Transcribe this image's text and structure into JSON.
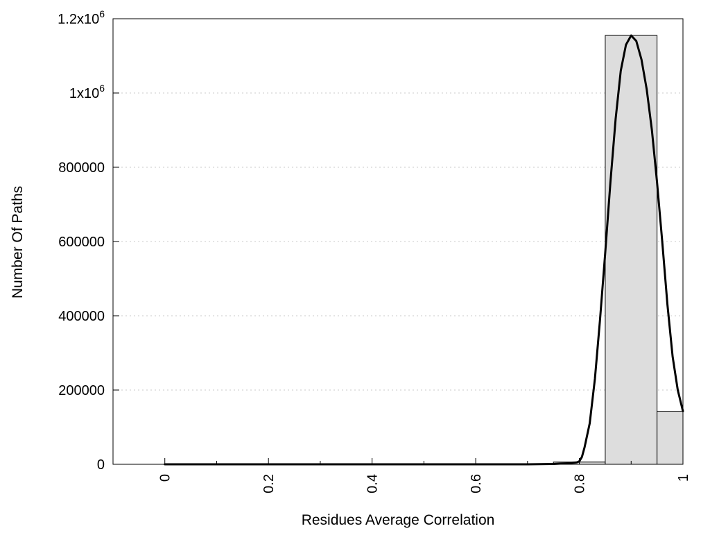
{
  "chart_data": {
    "type": "bar",
    "title": "",
    "xlabel": "Residues Average Correlation",
    "ylabel": "Number Of Paths",
    "xlim": [
      -0.1,
      1.0
    ],
    "ylim": [
      0,
      1200000
    ],
    "x_ticks": [
      {
        "value": 0.0,
        "label": "0"
      },
      {
        "value": 0.2,
        "label": "0.2"
      },
      {
        "value": 0.4,
        "label": "0.4"
      },
      {
        "value": 0.6,
        "label": "0.6"
      },
      {
        "value": 0.8,
        "label": "0.8"
      },
      {
        "value": 1.0,
        "label": "1"
      }
    ],
    "x_minor_ticks": [
      0.1,
      0.3,
      0.5,
      0.7,
      0.9
    ],
    "y_ticks": [
      {
        "value": 0,
        "label": "0",
        "sup": ""
      },
      {
        "value": 200000,
        "label": "200000",
        "sup": ""
      },
      {
        "value": 400000,
        "label": "400000",
        "sup": ""
      },
      {
        "value": 600000,
        "label": "600000",
        "sup": ""
      },
      {
        "value": 800000,
        "label": "800000",
        "sup": ""
      },
      {
        "value": 1000000,
        "label": "1x10",
        "sup": "6"
      },
      {
        "value": 1200000,
        "label": "1.2x10",
        "sup": "6"
      }
    ],
    "grid": {
      "horizontal": true,
      "style": "dotted"
    },
    "bins": [
      {
        "x0": 0.65,
        "x1": 0.75,
        "value": 1000
      },
      {
        "x0": 0.75,
        "x1": 0.85,
        "value": 6000
      },
      {
        "x0": 0.85,
        "x1": 0.95,
        "value": 1155000
      },
      {
        "x0": 0.95,
        "x1": 1.0,
        "value": 143000
      }
    ],
    "bar_color": "#dddddd",
    "curve": {
      "type": "line",
      "color": "#000000",
      "points": [
        [
          0.0,
          0
        ],
        [
          0.1,
          0
        ],
        [
          0.2,
          0
        ],
        [
          0.3,
          0
        ],
        [
          0.4,
          0
        ],
        [
          0.5,
          0
        ],
        [
          0.6,
          0
        ],
        [
          0.7,
          0
        ],
        [
          0.75,
          1000
        ],
        [
          0.78,
          3000
        ],
        [
          0.795,
          5000
        ],
        [
          0.8,
          8000
        ],
        [
          0.805,
          20000
        ],
        [
          0.81,
          45000
        ],
        [
          0.82,
          110000
        ],
        [
          0.83,
          230000
        ],
        [
          0.84,
          390000
        ],
        [
          0.85,
          570000
        ],
        [
          0.86,
          760000
        ],
        [
          0.87,
          930000
        ],
        [
          0.88,
          1060000
        ],
        [
          0.89,
          1130000
        ],
        [
          0.9,
          1155000
        ],
        [
          0.91,
          1140000
        ],
        [
          0.92,
          1090000
        ],
        [
          0.93,
          1010000
        ],
        [
          0.94,
          900000
        ],
        [
          0.95,
          760000
        ],
        [
          0.96,
          600000
        ],
        [
          0.97,
          430000
        ],
        [
          0.98,
          290000
        ],
        [
          0.99,
          200000
        ],
        [
          1.0,
          143000
        ]
      ]
    }
  }
}
